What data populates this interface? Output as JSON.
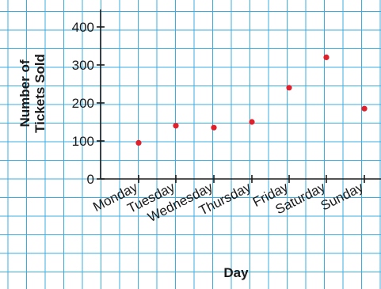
{
  "chart_data": {
    "type": "scatter",
    "title": "",
    "xlabel": "Day",
    "ylabel_lines": [
      "Number of",
      "Tickets Sold"
    ],
    "categories": [
      "Monday",
      "Tuesday",
      "Wednesday",
      "Thursday",
      "Friday",
      "Saturday",
      "Sunday"
    ],
    "values": [
      95,
      140,
      135,
      150,
      240,
      320,
      185
    ],
    "yticks": [
      0,
      100,
      200,
      300,
      400
    ],
    "ylim": [
      0,
      400
    ],
    "grid": true,
    "legend": "none"
  },
  "colors": {
    "grid": "#39aee0",
    "axis": "#1a1a1a",
    "point": "#e0202a",
    "text": "#1a1a1a"
  }
}
